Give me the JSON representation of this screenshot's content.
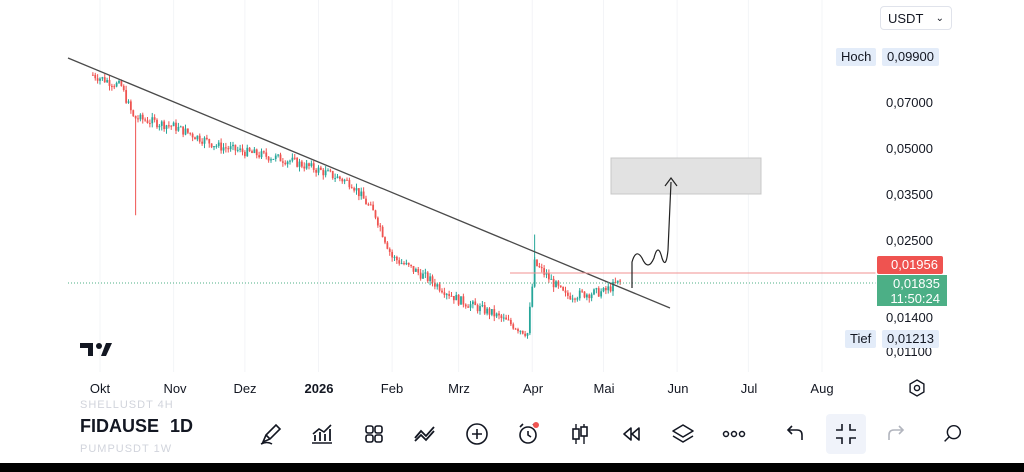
{
  "currency_select": {
    "value": "USDT",
    "icon": "chevron-down-icon"
  },
  "price_axis": {
    "high_label": "Hoch",
    "high_value": "0,09900",
    "low_label": "Tief",
    "low_value": "0,01213",
    "ticks": [
      "0,07000",
      "0,05000",
      "0,03500",
      "0,02500",
      "0,01400",
      "0,01100"
    ],
    "alert_price": "0,01956",
    "last_price": "0,01835",
    "countdown": "11:50:24"
  },
  "time_axis": [
    "Okt",
    "Nov",
    "Dez",
    "2026",
    "Feb",
    "Mrz",
    "Apr",
    "Mai",
    "Jun",
    "Jul",
    "Aug"
  ],
  "logo": "TV",
  "toolbar": {
    "symbol": "FIDAUSDT",
    "symbol_visible": "FIDAUSE",
    "interval": "1D",
    "ghost_above": "SHELLUSDT 4H",
    "ghost_below": "PUMPUSDT 1W",
    "icons": [
      "pencil-icon",
      "indicators-icon",
      "templates-icon",
      "compare-icon",
      "add-icon",
      "alert-clock-icon",
      "candle-type-icon",
      "replay-icon",
      "layers-icon",
      "more-icon",
      "undo-icon",
      "fullscreen-exit-icon",
      "redo-icon",
      "zoom-icon"
    ]
  },
  "colors": {
    "up": "#26a69a",
    "down": "#ef5350",
    "alert": "#ef5350",
    "last_price": "#4caf86",
    "high_low_bg": "#e3ecf9"
  },
  "chart_data": {
    "type": "candlestick",
    "symbol": "FIDAUSDT",
    "interval": "1D",
    "x_range": [
      "2025-09",
      "2026-08"
    ],
    "high": 0.099,
    "low": 0.01213,
    "last": 0.01835,
    "alert": 0.01956,
    "trendline": {
      "from": [
        "2025-09-28",
        0.099
      ],
      "to": [
        "2026-05-28",
        0.0152
      ]
    },
    "target_zone": {
      "from": "2026-05-13",
      "to": "2026-06-15",
      "price_low": 0.0355,
      "price_high": 0.046
    },
    "price_path": [
      [
        "2025-09-28",
        0.085
      ],
      [
        "2025-10-10",
        0.078
      ],
      [
        "2025-10-15",
        0.062
      ],
      [
        "2025-11-01",
        0.058
      ],
      [
        "2025-11-20",
        0.05
      ],
      [
        "2025-12-01",
        0.048
      ],
      [
        "2025-12-20",
        0.045
      ],
      [
        "2026-01-01",
        0.042
      ],
      [
        "2026-01-15",
        0.038
      ],
      [
        "2026-01-25",
        0.03
      ],
      [
        "2026-02-01",
        0.022
      ],
      [
        "2026-02-15",
        0.019
      ],
      [
        "2026-03-01",
        0.016
      ],
      [
        "2026-03-15",
        0.0145
      ],
      [
        "2026-03-30",
        0.0125
      ],
      [
        "2026-04-02",
        0.021
      ],
      [
        "2026-04-15",
        0.0165
      ],
      [
        "2026-05-01",
        0.017
      ],
      [
        "2026-05-08",
        0.01835
      ]
    ]
  }
}
